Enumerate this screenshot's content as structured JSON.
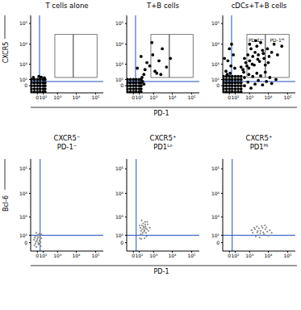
{
  "chart_data": [
    {
      "type": "scatter",
      "title": "T cells alone",
      "xlim": [
        -120,
        250000
      ],
      "ylim": [
        -120,
        250000
      ],
      "xticks": [
        0,
        {
          "value": 100,
          "label": "10²"
        },
        {
          "value": 1000,
          "label": "10³"
        },
        {
          "value": 10000,
          "label": "10⁴"
        },
        {
          "value": 100000,
          "label": "10⁵"
        }
      ],
      "yticks": [
        0,
        {
          "value": 100,
          "label": "10²"
        },
        {
          "value": 1000,
          "label": "10³"
        },
        {
          "value": 10000,
          "label": "10⁴"
        },
        {
          "value": 100000,
          "label": "10⁵"
        }
      ],
      "color": "#000000",
      "x": [
        -100,
        -41,
        0,
        41,
        100,
        151,
        -100,
        -41,
        0,
        41,
        100,
        151,
        -100,
        -41,
        0,
        41,
        100,
        151,
        -100,
        -41,
        0,
        41,
        100,
        151,
        -100,
        -41,
        0,
        41,
        100,
        151,
        60,
        20,
        130,
        -60
      ],
      "values": [
        -100,
        -100,
        -100,
        -100,
        -100,
        -100,
        -41,
        -41,
        -41,
        -41,
        -41,
        -41,
        0,
        0,
        0,
        0,
        0,
        0,
        41,
        41,
        41,
        41,
        41,
        41,
        100,
        100,
        100,
        100,
        100,
        100,
        160,
        180,
        140,
        150
      ],
      "gates": {
        "x": 30,
        "y": 60,
        "color": "#1f4fbf"
      },
      "boxes": [
        {
          "x": [
            700,
            7000
          ],
          "y": [
            150,
            30000
          ]
        },
        {
          "x": [
            7000,
            120000
          ],
          "y": [
            150,
            30000
          ]
        }
      ]
    },
    {
      "type": "scatter",
      "title": "T+B cells",
      "xlim": [
        -120,
        250000
      ],
      "ylim": [
        -120,
        250000
      ],
      "xticks": [
        0,
        {
          "value": 100,
          "label": "10²"
        },
        {
          "value": 1000,
          "label": "10³"
        },
        {
          "value": 10000,
          "label": "10⁴"
        },
        {
          "value": 100000,
          "label": "10⁵"
        }
      ],
      "yticks": [
        0,
        {
          "value": 100,
          "label": "10²"
        },
        {
          "value": 1000,
          "label": "10³"
        },
        {
          "value": 10000,
          "label": "10⁴"
        },
        {
          "value": 100000,
          "label": "10⁵"
        }
      ],
      "color": "#000000",
      "x": [
        -100,
        -41,
        0,
        41,
        100,
        151,
        -100,
        -41,
        0,
        41,
        100,
        151,
        -100,
        -41,
        0,
        41,
        100,
        151,
        -100,
        -41,
        0,
        41,
        100,
        151,
        -100,
        -41,
        0,
        41,
        100,
        151,
        200,
        250,
        180,
        300,
        600,
        1200,
        2000,
        900,
        400,
        5000,
        3000,
        150,
        800,
        1500,
        8000,
        250,
        60,
        2500
      ],
      "values": [
        -100,
        -100,
        -100,
        -100,
        -100,
        -100,
        -41,
        -41,
        -41,
        -41,
        -41,
        -41,
        0,
        0,
        0,
        0,
        0,
        0,
        41,
        41,
        41,
        41,
        41,
        41,
        100,
        100,
        100,
        100,
        100,
        100,
        60,
        20,
        150,
        500,
        800,
        400,
        1500,
        3000,
        1200,
        700,
        6000,
        2500,
        12000,
        300,
        2000,
        250,
        600,
        250
      ],
      "gates": {
        "x": 30,
        "y": 60,
        "color": "#1f4fbf"
      },
      "boxes": [
        {
          "x": [
            700,
            7000
          ],
          "y": [
            150,
            30000
          ]
        },
        {
          "x": [
            7000,
            120000
          ],
          "y": [
            150,
            30000
          ]
        }
      ]
    },
    {
      "type": "scatter",
      "title": "cDCs+T+B cells",
      "xlim": [
        -120,
        250000
      ],
      "ylim": [
        -120,
        250000
      ],
      "xticks": [
        0,
        {
          "value": 100,
          "label": "10²"
        },
        {
          "value": 1000,
          "label": "10³"
        },
        {
          "value": 10000,
          "label": "10⁴"
        },
        {
          "value": 100000,
          "label": "10⁵"
        }
      ],
      "yticks": [
        0,
        {
          "value": 100,
          "label": "10²"
        },
        {
          "value": 1000,
          "label": "10³"
        },
        {
          "value": 10000,
          "label": "10⁴"
        },
        {
          "value": 100000,
          "label": "10⁵"
        }
      ],
      "color": "#000000",
      "x": [
        -100,
        -41,
        0,
        41,
        100,
        182,
        300,
        -100,
        -41,
        0,
        41,
        100,
        182,
        300,
        -100,
        -41,
        0,
        41,
        100,
        182,
        300,
        -100,
        -41,
        0,
        41,
        100,
        182,
        300,
        -100,
        -41,
        0,
        41,
        100,
        182,
        300,
        -100,
        -41,
        0,
        41,
        100,
        182,
        300,
        500,
        800,
        1200,
        2000,
        3000,
        5000,
        8000,
        15000,
        500,
        900,
        1500,
        2500,
        4000,
        7000,
        12000,
        25000,
        400,
        700,
        1000,
        1500,
        2000,
        3000,
        5000,
        800,
        1200,
        2500,
        4000,
        6000,
        9000,
        15000,
        20000,
        600,
        1800,
        3500,
        7000,
        11000,
        300,
        500,
        1000,
        2200,
        30000,
        50000,
        450,
        900,
        1400,
        2800,
        5500,
        10000,
        -50,
        20,
        -20,
        60,
        0,
        30,
        -80,
        90,
        10,
        -30
      ],
      "values": [
        -100,
        -100,
        -100,
        -100,
        -100,
        -100,
        -100,
        -41,
        -41,
        -41,
        -41,
        -41,
        -41,
        -41,
        0,
        0,
        0,
        0,
        0,
        0,
        0,
        41,
        41,
        41,
        41,
        41,
        41,
        41,
        100,
        100,
        100,
        100,
        100,
        100,
        100,
        182,
        182,
        182,
        182,
        182,
        182,
        182,
        0,
        50,
        -30,
        20,
        80,
        10,
        60,
        30,
        150,
        250,
        180,
        300,
        200,
        350,
        150,
        100,
        500,
        800,
        1500,
        2500,
        4000,
        3000,
        5000,
        3000,
        6000,
        8000,
        12000,
        2000,
        6000,
        4000,
        10000,
        1200,
        900,
        1400,
        900,
        2500,
        700,
        2000,
        10000,
        15000,
        3000,
        8000,
        350,
        600,
        1000,
        1800,
        3500,
        1200,
        400,
        800,
        1500,
        3000,
        6000,
        10000,
        2000,
        600,
        300,
        250
      ],
      "gates": {
        "x": 30,
        "y": 60,
        "color": "#1f4fbf"
      },
      "boxes": [
        {
          "x": [
            700,
            7000
          ],
          "y": [
            150,
            30000
          ],
          "label": "PD-1ᴸᵒ"
        },
        {
          "x": [
            7000,
            120000
          ],
          "y": [
            150,
            30000
          ],
          "label": "PD-1ᴴⁱ"
        }
      ]
    },
    {
      "type": "scatter",
      "title": [
        "CXCR5⁻",
        "PD-1⁻"
      ],
      "xlim": [
        -120,
        250000
      ],
      "ylim": [
        -120,
        250000
      ],
      "xticks": [
        0,
        {
          "value": 100,
          "label": "10²"
        },
        {
          "value": 1000,
          "label": "10³"
        },
        {
          "value": 10000,
          "label": "10⁴"
        },
        {
          "value": 100000,
          "label": "10⁵"
        }
      ],
      "yticks": [
        0,
        {
          "value": 100,
          "label": "10²"
        },
        {
          "value": 1000,
          "label": "10³"
        },
        {
          "value": 10000,
          "label": "10⁴"
        },
        {
          "value": 100000,
          "label": "10⁵"
        }
      ],
      "color": "#8c8c8c",
      "x": [
        -40,
        -20,
        0,
        20,
        10,
        -30,
        30,
        50,
        -10,
        40,
        5,
        -50,
        25,
        60,
        -15,
        15,
        35,
        -5,
        45,
        -25,
        0,
        55,
        -35,
        10
      ],
      "values": [
        -30,
        10,
        40,
        -10,
        60,
        80,
        20,
        -40,
        -50,
        90,
        110,
        30,
        130,
        50,
        150,
        -20,
        70,
        20,
        5,
        -10,
        90,
        120,
        55,
        0
      ],
      "gates": {
        "x": 40,
        "y": 100,
        "color": "#1f4fbf"
      }
    },
    {
      "type": "scatter",
      "title": [
        "CXCR5⁺",
        "PD1ᴸᵒ"
      ],
      "xlim": [
        -120,
        250000
      ],
      "ylim": [
        -120,
        250000
      ],
      "xticks": [
        0,
        {
          "value": 100,
          "label": "10²"
        },
        {
          "value": 1000,
          "label": "10³"
        },
        {
          "value": 10000,
          "label": "10⁴"
        },
        {
          "value": 100000,
          "label": "10⁵"
        }
      ],
      "yticks": [
        0,
        {
          "value": 100,
          "label": "10²"
        },
        {
          "value": 1000,
          "label": "10³"
        },
        {
          "value": 10000,
          "label": "10⁴"
        },
        {
          "value": 100000,
          "label": "10⁵"
        }
      ],
      "color": "#8c8c8c",
      "x": [
        120,
        150,
        180,
        200,
        250,
        300,
        350,
        400,
        220,
        280,
        130,
        170,
        320,
        450,
        500,
        260,
        190,
        380,
        140,
        600,
        230,
        310,
        160,
        420,
        270,
        200,
        340,
        110
      ],
      "values": [
        50,
        200,
        400,
        100,
        300,
        600,
        150,
        250,
        500,
        50,
        300,
        700,
        350,
        450,
        200,
        180,
        250,
        80,
        120,
        300,
        350,
        450,
        40,
        600,
        220,
        150,
        280,
        400
      ],
      "gates": {
        "x": 40,
        "y": 100,
        "color": "#1f4fbf"
      }
    },
    {
      "type": "scatter",
      "title": [
        "CXCR5⁺",
        "PD1ᴴⁱ"
      ],
      "xlim": [
        -120,
        250000
      ],
      "ylim": [
        -120,
        250000
      ],
      "xticks": [
        0,
        {
          "value": 100,
          "label": "10²"
        },
        {
          "value": 1000,
          "label": "10³"
        },
        {
          "value": 10000,
          "label": "10⁴"
        },
        {
          "value": 100000,
          "label": "10⁵"
        }
      ],
      "yticks": [
        0,
        {
          "value": 100,
          "label": "10²"
        },
        {
          "value": 1000,
          "label": "10³"
        },
        {
          "value": 10000,
          "label": "10⁴"
        },
        {
          "value": 100000,
          "label": "10⁵"
        }
      ],
      "color": "#8c8c8c",
      "x": [
        1500,
        2000,
        3000,
        2500,
        4000,
        5000,
        6000,
        3500,
        1800,
        7000,
        9000,
        12000,
        2200,
        2800,
        4500,
        8000,
        3200,
        5500,
        1300,
        10000,
        6500,
        15000,
        3800,
        2600
      ],
      "values": [
        150,
        250,
        100,
        350,
        200,
        300,
        120,
        60,
        300,
        250,
        180,
        220,
        80,
        200,
        380,
        320,
        280,
        160,
        220,
        90,
        400,
        150,
        140,
        160
      ],
      "gates": {
        "x": 40,
        "y": 100,
        "color": "#1f4fbf"
      }
    }
  ],
  "shared_labels": [
    {
      "x_label": "PD-1",
      "y_label": "CXCR5"
    },
    {
      "x_label": "PD-1",
      "y_label": "Bcl-6"
    }
  ]
}
